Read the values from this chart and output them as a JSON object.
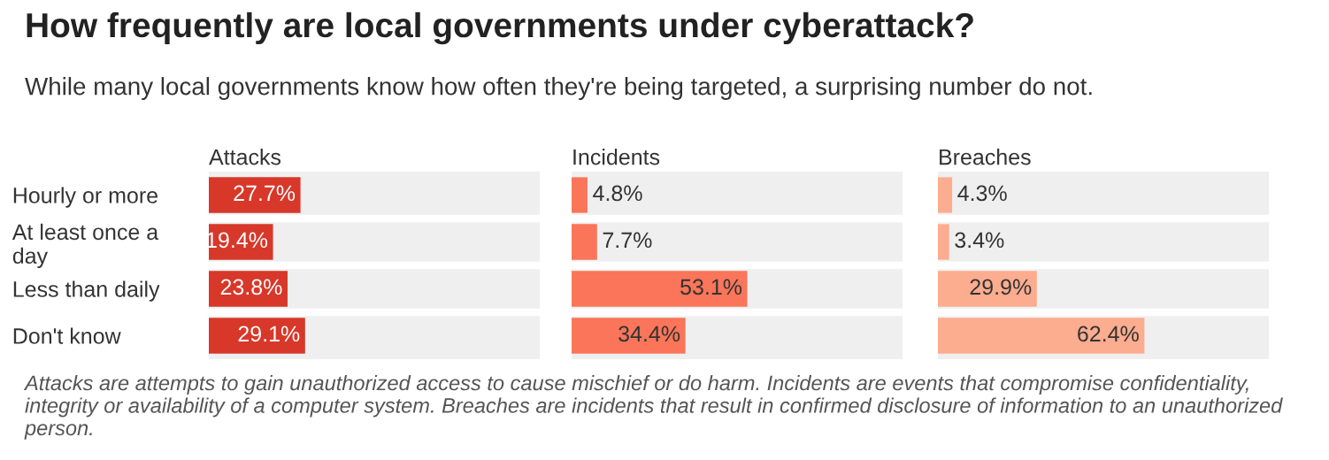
{
  "chart_data": [
    {
      "type": "bar",
      "orientation": "horizontal",
      "title": "How frequently are local governments under cyberattack?",
      "subtitle": "While many local governments know how often they're being targeted, a surprising number do not.",
      "xlabel": "Attacks",
      "categories": [
        "Hourly or more",
        "At least once a\nday",
        "Less than daily",
        "Don't know"
      ],
      "values": [
        27.7,
        19.4,
        23.8,
        29.1
      ],
      "value_labels": [
        "27.7%",
        "19.4%",
        "23.8%",
        "29.1%"
      ],
      "color": "#d7382a",
      "xlim": [
        0,
        100
      ],
      "tick_labels": "y",
      "annotations": [
        "Attacks are attempts to gain unauthorized access to cause mischief or do harm. Incidents are events that compromise confidentiality, integrity or availability of a computer system. Breaches are incidents that result in confirmed disclosure of information to an unauthorized person."
      ]
    },
    {
      "type": "bar",
      "orientation": "horizontal",
      "xlabel": "Incidents",
      "values": [
        4.8,
        7.7,
        53.1,
        34.4
      ],
      "value_labels": [
        "4.8%",
        "7.7%",
        "53.1%",
        "34.4%"
      ],
      "color": "#fa7559",
      "xlim": [
        0,
        100
      ],
      "tick_labels": false
    },
    {
      "type": "bar",
      "orientation": "horizontal",
      "xlabel": "Breaches",
      "values": [
        4.3,
        3.4,
        29.9,
        62.4
      ],
      "value_labels": [
        "4.3%",
        "3.4%",
        "29.9%",
        "62.4%"
      ],
      "color": "#fcac8f",
      "xlim": [
        0,
        100
      ],
      "tick_labels": false
    }
  ]
}
